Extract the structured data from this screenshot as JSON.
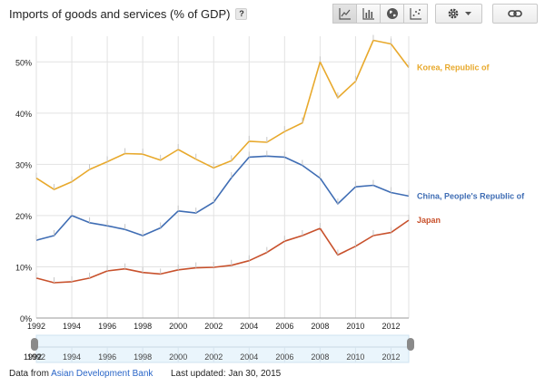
{
  "header": {
    "title": "Imports of goods and services (% of GDP)",
    "help_label": "?"
  },
  "toolbar": {
    "buttons": [
      {
        "icon": "line-chart-icon",
        "active": true
      },
      {
        "icon": "bar-chart-icon",
        "active": false
      },
      {
        "icon": "globe-map-icon",
        "active": false
      },
      {
        "icon": "scatter-plot-icon",
        "active": false
      }
    ],
    "settings_icon": "gear-icon",
    "link_icon": "link-icon"
  },
  "chart_data": {
    "type": "line",
    "title": "Imports of goods and services (% of GDP)",
    "x": [
      1992,
      1993,
      1994,
      1995,
      1996,
      1997,
      1998,
      1999,
      2000,
      2001,
      2002,
      2003,
      2004,
      2005,
      2006,
      2007,
      2008,
      2009,
      2010,
      2011,
      2012,
      2013
    ],
    "xlim": [
      1992,
      2013
    ],
    "ylim": [
      0,
      55
    ],
    "yticks": [
      0,
      10,
      20,
      30,
      40,
      50
    ],
    "ytick_labels": [
      "0%",
      "10%",
      "20%",
      "30%",
      "40%",
      "50%"
    ],
    "xticks": [
      1992,
      1994,
      1996,
      1998,
      2000,
      2002,
      2004,
      2006,
      2008,
      2010,
      2012
    ],
    "xtick_labels": [
      "1992",
      "1994",
      "1996",
      "1998",
      "2000",
      "2002",
      "2004",
      "2006",
      "2008",
      "2010",
      "2012"
    ],
    "grid": true,
    "legend": "right, labels beside line ends",
    "series": [
      {
        "name": "Korea, Republic of",
        "color": "#e8a92c",
        "values": [
          27.3,
          25.1,
          26.6,
          29.0,
          30.5,
          32.1,
          32.0,
          30.8,
          32.9,
          31.0,
          29.3,
          30.7,
          34.5,
          34.3,
          36.4,
          38.1,
          50.0,
          43.0,
          46.2,
          54.2,
          53.5,
          48.9
        ]
      },
      {
        "name": "China, People's Republic of",
        "color": "#3f6db4",
        "values": [
          15.2,
          16.1,
          20.0,
          18.6,
          18.0,
          17.3,
          16.1,
          17.6,
          20.9,
          20.5,
          22.6,
          27.4,
          31.4,
          31.6,
          31.4,
          29.8,
          27.3,
          22.3,
          25.6,
          25.9,
          24.5,
          23.8
        ]
      },
      {
        "name": "Japan",
        "color": "#c8512c",
        "values": [
          7.8,
          6.9,
          7.1,
          7.8,
          9.2,
          9.6,
          8.9,
          8.6,
          9.4,
          9.8,
          9.9,
          10.3,
          11.2,
          12.8,
          15.0,
          16.1,
          17.5,
          12.3,
          14.0,
          16.1,
          16.7,
          19.1
        ]
      }
    ]
  },
  "range_slider": {
    "tick_labels": [
      "1992",
      "1994",
      "1996",
      "1998",
      "2000",
      "2002",
      "2004",
      "2006",
      "2008",
      "2010",
      "2012"
    ],
    "start_label": "1992"
  },
  "footer": {
    "prefix": "Data from",
    "source": "Asian Development Bank",
    "updated": "Last updated: Jan 30, 2015"
  }
}
